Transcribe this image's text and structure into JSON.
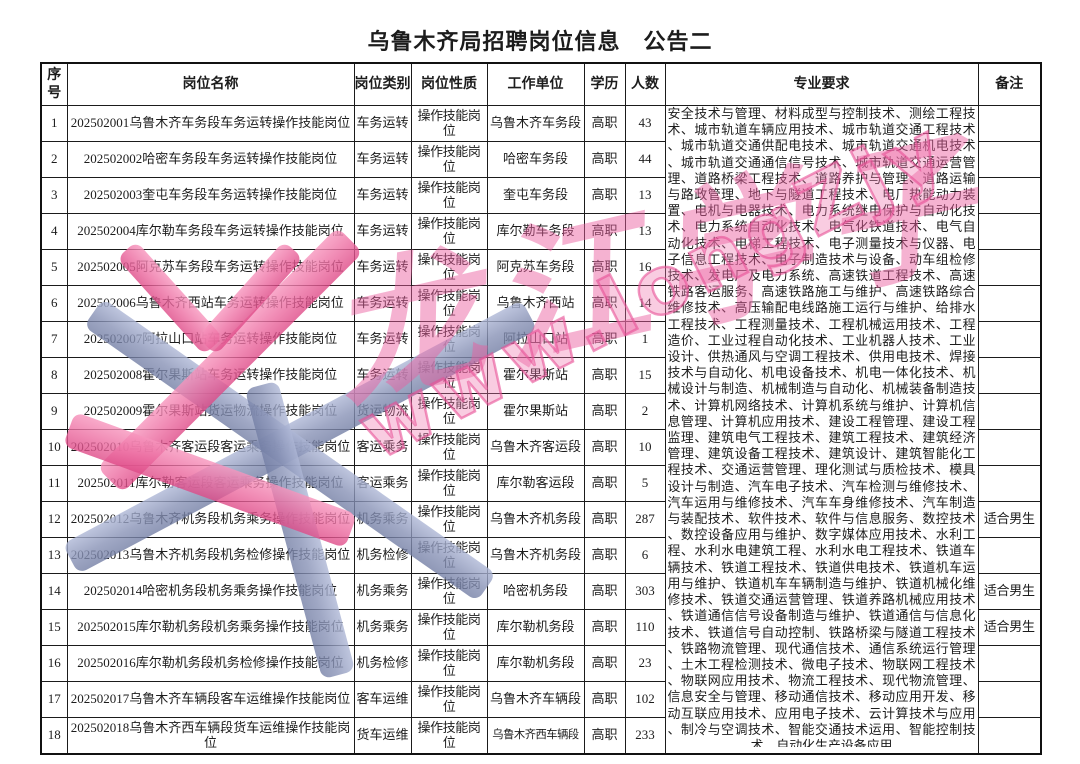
{
  "title": "乌鲁木齐局招聘岗位信息　公告二",
  "table": {
    "headers": [
      "序号",
      "岗位名称",
      "岗位类别",
      "岗位性质",
      "工作单位",
      "学历",
      "人数",
      "专业要求",
      "备注"
    ],
    "rows": [
      {
        "no": "1",
        "name": "202502001乌鲁木齐车务段车务运转操作技能岗位",
        "category": "车务运转",
        "nature": "操作技能岗位",
        "unit": "乌鲁木齐车务段",
        "education": "高职",
        "count": "43",
        "remark": ""
      },
      {
        "no": "2",
        "name": "202502002哈密车务段车务运转操作技能岗位",
        "category": "车务运转",
        "nature": "操作技能岗位",
        "unit": "哈密车务段",
        "education": "高职",
        "count": "44",
        "remark": ""
      },
      {
        "no": "3",
        "name": "202502003奎屯车务段车务运转操作技能岗位",
        "category": "车务运转",
        "nature": "操作技能岗位",
        "unit": "奎屯车务段",
        "education": "高职",
        "count": "13",
        "remark": ""
      },
      {
        "no": "4",
        "name": "202502004库尔勒车务段车务运转操作技能岗位",
        "category": "车务运转",
        "nature": "操作技能岗位",
        "unit": "库尔勒车务段",
        "education": "高职",
        "count": "13",
        "remark": ""
      },
      {
        "no": "5",
        "name": "202502005阿克苏车务段车务运转操作技能岗位",
        "category": "车务运转",
        "nature": "操作技能岗位",
        "unit": "阿克苏车务段",
        "education": "高职",
        "count": "16",
        "remark": ""
      },
      {
        "no": "6",
        "name": "202502006乌鲁木齐西站车务运转操作技能岗位",
        "category": "车务运转",
        "nature": "操作技能岗位",
        "unit": "乌鲁木齐西站",
        "education": "高职",
        "count": "14",
        "remark": ""
      },
      {
        "no": "7",
        "name": "202502007阿拉山口站车务运转操作技能岗位",
        "category": "车务运转",
        "nature": "操作技能岗位",
        "unit": "阿拉山口站",
        "education": "高职",
        "count": "1",
        "remark": ""
      },
      {
        "no": "8",
        "name": "202502008霍尔果斯站车务运转操作技能岗位",
        "category": "车务运转",
        "nature": "操作技能岗位",
        "unit": "霍尔果斯站",
        "education": "高职",
        "count": "15",
        "remark": ""
      },
      {
        "no": "9",
        "name": "202502009霍尔果斯站货运物流操作技能岗位",
        "category": "货运物流",
        "nature": "操作技能岗位",
        "unit": "霍尔果斯站",
        "education": "高职",
        "count": "2",
        "remark": ""
      },
      {
        "no": "10",
        "name": "202502010乌鲁木齐客运段客运乘务操作技能岗位",
        "category": "客运乘务",
        "nature": "操作技能岗位",
        "unit": "乌鲁木齐客运段",
        "education": "高职",
        "count": "10",
        "remark": ""
      },
      {
        "no": "11",
        "name": "202502011库尔勒客运段客运乘务操作技能岗位",
        "category": "客运乘务",
        "nature": "操作技能岗位",
        "unit": "库尔勒客运段",
        "education": "高职",
        "count": "5",
        "remark": ""
      },
      {
        "no": "12",
        "name": "202502012乌鲁木齐机务段机务乘务操作技能岗位",
        "category": "机务乘务",
        "nature": "操作技能岗位",
        "unit": "乌鲁木齐机务段",
        "education": "高职",
        "count": "287",
        "remark": "适合男生"
      },
      {
        "no": "13",
        "name": "202502013乌鲁木齐机务段机务检修操作技能岗位",
        "category": "机务检修",
        "nature": "操作技能岗位",
        "unit": "乌鲁木齐机务段",
        "education": "高职",
        "count": "6",
        "remark": ""
      },
      {
        "no": "14",
        "name": "202502014哈密机务段机务乘务操作技能岗位",
        "category": "机务乘务",
        "nature": "操作技能岗位",
        "unit": "哈密机务段",
        "education": "高职",
        "count": "303",
        "remark": "适合男生"
      },
      {
        "no": "15",
        "name": "202502015库尔勒机务段机务乘务操作技能岗位",
        "category": "机务乘务",
        "nature": "操作技能岗位",
        "unit": "库尔勒机务段",
        "education": "高职",
        "count": "110",
        "remark": "适合男生"
      },
      {
        "no": "16",
        "name": "202502016库尔勒机务段机务检修操作技能岗位",
        "category": "机务检修",
        "nature": "操作技能岗位",
        "unit": "库尔勒机务段",
        "education": "高职",
        "count": "23",
        "remark": ""
      },
      {
        "no": "17",
        "name": "202502017乌鲁木齐车辆段客车运维操作技能岗位",
        "category": "客车运维",
        "nature": "操作技能岗位",
        "unit": "乌鲁木齐车辆段",
        "education": "高职",
        "count": "102",
        "remark": ""
      },
      {
        "no": "18",
        "name": "202502018乌鲁木齐西车辆段货车运维操作技能岗位",
        "category": "货车运维",
        "nature": "操作技能岗位",
        "unit": "乌鲁木齐西车辆段",
        "education": "高职",
        "count": "233",
        "remark": ""
      }
    ],
    "requirements": "安全技术与管理、材料成型与控制技术、测绘工程技术、城市轨道车辆应用技术、城市轨道交通工程技术、城市轨道交通供配电技术、城市轨道交通机电技术、城市轨道交通通信信号技术、城市轨道交通运营管理、道路桥梁工程技术、道路养护与管理、道路运输与路政管理、地下与隧道工程技术、电厂热能动力装置、电机与电器技术、电力系统继电保护与自动化技术、电力系统自动化技术、电气化铁道技术、电气自动化技术、电梯工程技术、电子测量技术与仪器、电子信息工程技术、电子制造技术与设备、动车组检修技术、发电厂及电力系统、高速铁道工程技术、高速铁路客运服务、高速铁路施工与维护、高速铁路综合维修技术、高压输配电线路施工运行与维护、给排水工程技术、工程测量技术、工程机械运用技术、工程造价、工业过程自动化技术、工业机器人技术、工业设计、供热通风与空调工程技术、供用电技术、焊接技术与自动化、机电设备技术、机电一体化技术、机械设计与制造、机械制造与自动化、机械装备制造技术、计算机网络技术、计算机系统与维护、计算机信息管理、计算机应用技术、建设工程管理、建设工程监理、建筑电气工程技术、建筑工程技术、建筑经济管理、建筑设备工程技术、建筑设计、建筑智能化工程技术、交通运营管理、理化测试与质检技术、模具设计与制造、汽车电子技术、汽车检测与维修技术、汽车运用与维修技术、汽车车身维修技术、汽车制造与装配技术、软件技术、软件与信息服务、数控技术、数控设备应用与维护、数字媒体应用技术、水利工程、水利水电建筑工程、水利水电工程技术、铁道车辆技术、铁道工程技术、铁道供电技术、铁道机车运用与维护、铁道机车车辆制造与维护、铁道机械化维修技术、铁道交通运营管理、铁道养路机械应用技术、铁道通信信号设备制造与维护、铁道通信与信息化技术、铁道信号自动控制、铁路桥梁与隧道工程技术、铁路物流管理、现代通信技术、通信系统运行管理、土木工程检测技术、微电子技术、物联网工程技术、物联网应用技术、物流工程技术、现代物流管理、信息安全与管理、移动通信技术、移动应用开发、移动互联应用技术、应用电子技术、云计算技术与应用、制冷与空调技术、智能交通技术运用、智能控制技术、自动化生产设备应用"
  },
  "watermark": {
    "text_cn": "龙江学子",
    "text_url": "www.longZjy",
    "pink": "#e75f9f",
    "slate": "#8f9cc0"
  }
}
